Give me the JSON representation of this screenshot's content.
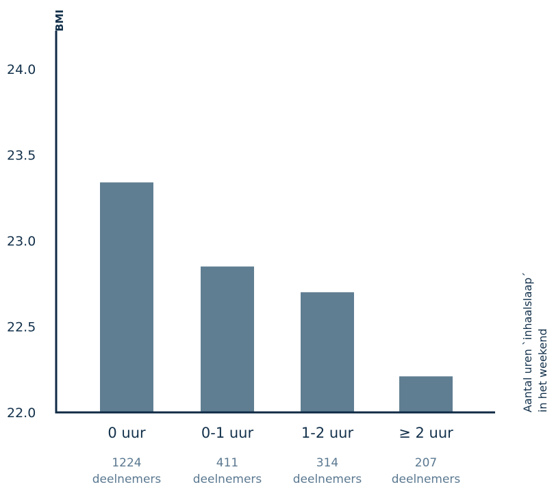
{
  "chart_data": {
    "type": "bar",
    "ylabel": "BMI",
    "xlabel": [
      "Aantal uren `inhaalslaap´",
      "in het weekend"
    ],
    "ylim": [
      22.0,
      24.2
    ],
    "yticks": [
      "22.0",
      "22.5",
      "23.0",
      "23.5",
      "24.0"
    ],
    "categories": [
      "0 uur",
      "0-1 uur",
      "1-2 uur",
      "≥ 2 uur"
    ],
    "participants_number": [
      "1224",
      "411",
      "314",
      "207"
    ],
    "participants_word": "deelnemers",
    "values": [
      23.34,
      22.85,
      22.7,
      22.21
    ],
    "bar_color": "#607e92",
    "axis_color": "#0f2a44"
  }
}
